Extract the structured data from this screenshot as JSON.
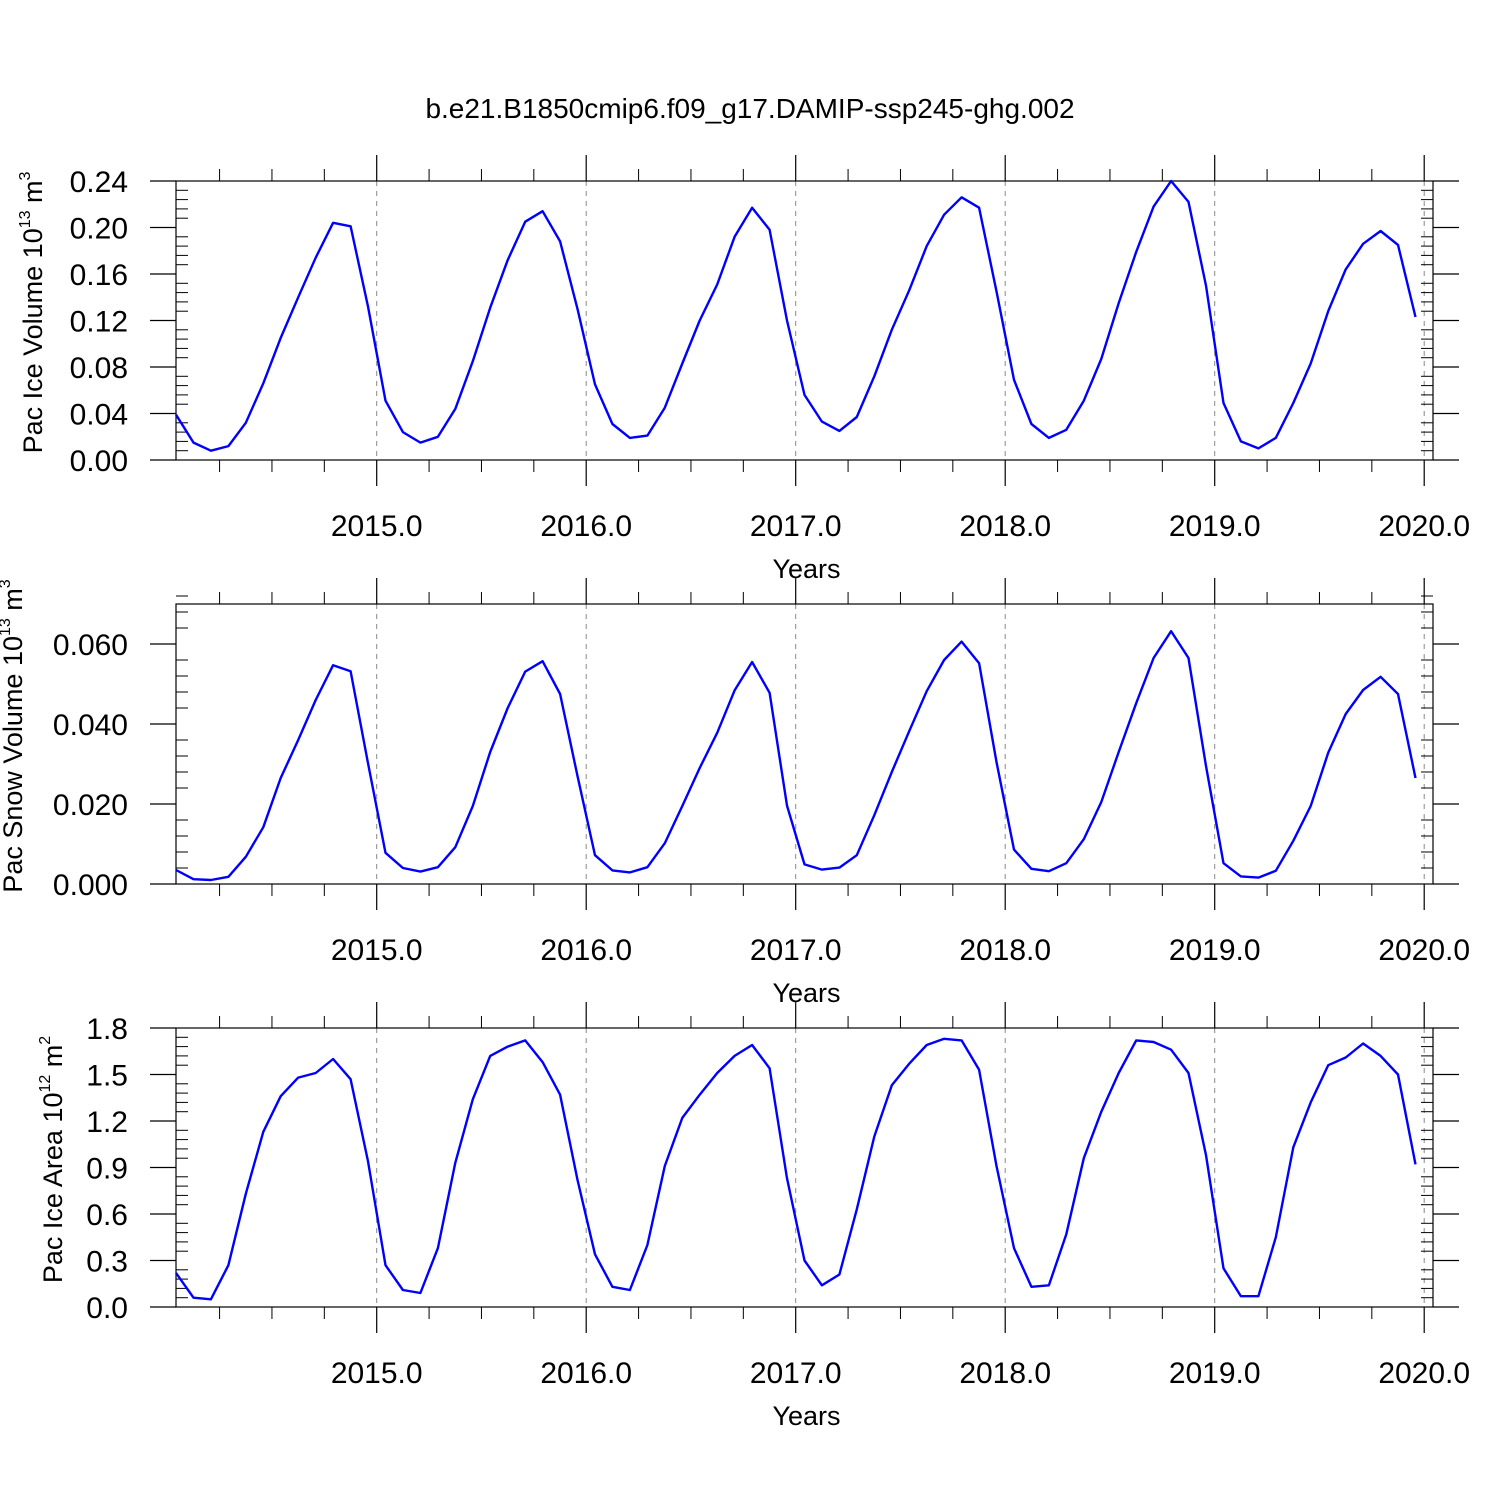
{
  "title": "b.e21.B1850cmip6.f09_g17.DAMIP-ssp245-ghg.002",
  "colors": {
    "line": "#0000ff",
    "axis": "#000000",
    "grid": "#888888"
  },
  "chart_data": [
    {
      "type": "line",
      "xlabel": "Years",
      "ylabel_base": "Pac Ice Volume 10",
      "ylabel_exp": "13",
      "ylabel_unit": " m",
      "ylabel_unit_exp": "3",
      "xlim": [
        2014.042,
        2020.042
      ],
      "ylim": [
        0.0,
        0.24
      ],
      "xticks": [
        2015.0,
        2016.0,
        2017.0,
        2018.0,
        2019.0,
        2020.0
      ],
      "xtick_labels": [
        "2015.0",
        "2016.0",
        "2017.0",
        "2018.0",
        "2019.0",
        "2020.0"
      ],
      "yticks": [
        0.0,
        0.04,
        0.08,
        0.12,
        0.16,
        0.2,
        0.24
      ],
      "ytick_labels": [
        "0.00",
        "0.04",
        "0.08",
        "0.12",
        "0.16",
        "0.20",
        "0.24"
      ],
      "y_minor_step": 0.008,
      "x_minor_step": 0.25,
      "grid": "vertical-dashed-at-years",
      "series": [
        {
          "x_start": 2014.042,
          "x_step": 0.08333,
          "values": [
            0.039,
            0.015,
            0.008,
            0.012,
            0.032,
            0.066,
            0.105,
            0.14,
            0.174,
            0.204,
            0.201,
            0.132,
            0.051,
            0.024,
            0.015,
            0.02,
            0.044,
            0.085,
            0.131,
            0.172,
            0.205,
            0.214,
            0.188,
            0.13,
            0.065,
            0.031,
            0.019,
            0.021,
            0.045,
            0.083,
            0.12,
            0.151,
            0.192,
            0.217,
            0.198,
            0.12,
            0.056,
            0.033,
            0.025,
            0.037,
            0.072,
            0.112,
            0.146,
            0.184,
            0.211,
            0.226,
            0.217,
            0.145,
            0.069,
            0.031,
            0.019,
            0.026,
            0.051,
            0.087,
            0.135,
            0.179,
            0.218,
            0.24,
            0.222,
            0.15,
            0.049,
            0.016,
            0.01,
            0.019,
            0.049,
            0.083,
            0.128,
            0.164,
            0.186,
            0.197,
            0.185,
            0.123
          ]
        }
      ]
    },
    {
      "type": "line",
      "xlabel": "Years",
      "ylabel_base": "Pac Snow Volume 10",
      "ylabel_exp": "13",
      "ylabel_unit": " m",
      "ylabel_unit_exp": "3",
      "xlim": [
        2014.042,
        2020.042
      ],
      "ylim": [
        0.0,
        0.07
      ],
      "xticks": [
        2015.0,
        2016.0,
        2017.0,
        2018.0,
        2019.0,
        2020.0
      ],
      "xtick_labels": [
        "2015.0",
        "2016.0",
        "2017.0",
        "2018.0",
        "2019.0",
        "2020.0"
      ],
      "yticks": [
        0.0,
        0.02,
        0.04,
        0.06
      ],
      "ytick_labels": [
        "0.000",
        "0.020",
        "0.040",
        "0.060"
      ],
      "y_minor_step": 0.004,
      "x_minor_step": 0.25,
      "grid": "vertical-dashed-at-years",
      "series": [
        {
          "x_start": 2014.042,
          "x_step": 0.08333,
          "values": [
            0.0035,
            0.0012,
            0.001,
            0.0018,
            0.0068,
            0.0142,
            0.0265,
            0.036,
            0.046,
            0.0547,
            0.0532,
            0.0302,
            0.0078,
            0.004,
            0.0031,
            0.0042,
            0.0092,
            0.0195,
            0.033,
            0.044,
            0.0531,
            0.0557,
            0.0475,
            0.027,
            0.0072,
            0.0034,
            0.0029,
            0.0042,
            0.0102,
            0.0195,
            0.029,
            0.0378,
            0.0484,
            0.0555,
            0.0478,
            0.0196,
            0.0049,
            0.0036,
            0.0041,
            0.0072,
            0.0172,
            0.028,
            0.0382,
            0.0482,
            0.056,
            0.0606,
            0.0552,
            0.0305,
            0.0086,
            0.0038,
            0.0032,
            0.0052,
            0.0112,
            0.0205,
            0.033,
            0.0452,
            0.0565,
            0.0632,
            0.0565,
            0.0295,
            0.0052,
            0.0019,
            0.0016,
            0.0033,
            0.0108,
            0.0195,
            0.0328,
            0.0425,
            0.0485,
            0.0518,
            0.0475,
            0.0265
          ]
        }
      ]
    },
    {
      "type": "line",
      "xlabel": "Years",
      "ylabel_base": "Pac Ice Area 10",
      "ylabel_exp": "12",
      "ylabel_unit": " m",
      "ylabel_unit_exp": "2",
      "xlim": [
        2014.042,
        2020.042
      ],
      "ylim": [
        0.0,
        1.8
      ],
      "xticks": [
        2015.0,
        2016.0,
        2017.0,
        2018.0,
        2019.0,
        2020.0
      ],
      "xtick_labels": [
        "2015.0",
        "2016.0",
        "2017.0",
        "2018.0",
        "2019.0",
        "2020.0"
      ],
      "yticks": [
        0.0,
        0.3,
        0.6,
        0.9,
        1.2,
        1.5,
        1.8
      ],
      "ytick_labels": [
        "0.0",
        "0.3",
        "0.6",
        "0.9",
        "1.2",
        "1.5",
        "1.8"
      ],
      "y_minor_step": 0.06,
      "x_minor_step": 0.25,
      "grid": "vertical-dashed-at-years",
      "series": [
        {
          "x_start": 2014.042,
          "x_step": 0.08333,
          "values": [
            0.22,
            0.06,
            0.05,
            0.27,
            0.73,
            1.13,
            1.36,
            1.48,
            1.51,
            1.6,
            1.47,
            0.94,
            0.27,
            0.11,
            0.09,
            0.38,
            0.93,
            1.34,
            1.62,
            1.68,
            1.72,
            1.58,
            1.37,
            0.82,
            0.34,
            0.13,
            0.11,
            0.4,
            0.91,
            1.22,
            1.37,
            1.51,
            1.62,
            1.69,
            1.54,
            0.83,
            0.3,
            0.14,
            0.21,
            0.63,
            1.1,
            1.43,
            1.57,
            1.69,
            1.73,
            1.72,
            1.53,
            0.91,
            0.38,
            0.13,
            0.14,
            0.47,
            0.96,
            1.26,
            1.51,
            1.72,
            1.71,
            1.66,
            1.51,
            0.98,
            0.25,
            0.07,
            0.07,
            0.45,
            1.03,
            1.32,
            1.56,
            1.61,
            1.7,
            1.62,
            1.5,
            0.92
          ]
        }
      ]
    }
  ]
}
